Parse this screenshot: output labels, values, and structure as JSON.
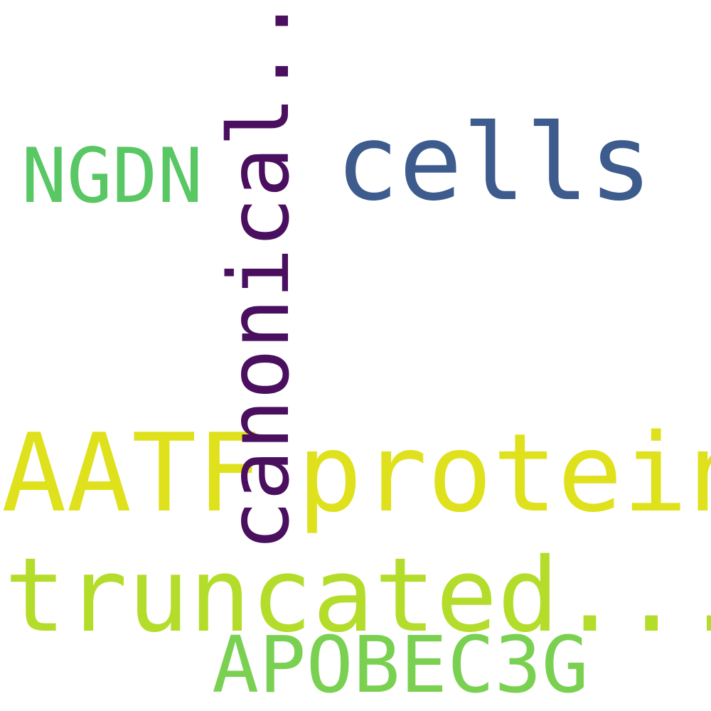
{
  "words": {
    "protein": "protein",
    "truncated": "truncated...",
    "aatf": "AATF",
    "cells": "cells",
    "canonical": "canonical...",
    "apobec3g": "APOBEC3G",
    "ngdn": "NGDN"
  },
  "colors": {
    "protein": "#dfe11c",
    "truncated": "#b4dd2b",
    "aatf": "#dfe11c",
    "cells": "#3d5b8c",
    "canonical": "#4a0f5e",
    "apobec3g": "#7ad151",
    "ngdn": "#59c764",
    "background": "#ffffff"
  }
}
